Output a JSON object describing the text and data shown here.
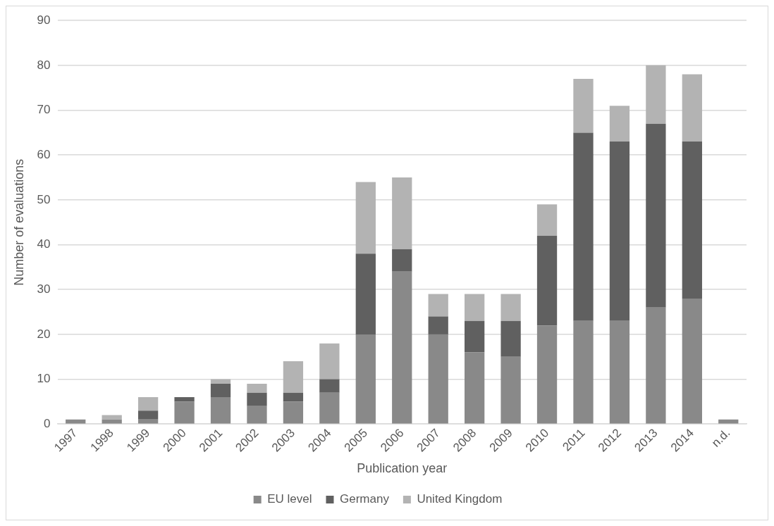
{
  "chart_data": {
    "type": "bar",
    "stacked": true,
    "xlabel": "Publication year",
    "ylabel": "Number of evaluations",
    "categories": [
      "1997",
      "1998",
      "1999",
      "2000",
      "2001",
      "2002",
      "2003",
      "2004",
      "2005",
      "2006",
      "2007",
      "2008",
      "2009",
      "2010",
      "2011",
      "2012",
      "2013",
      "2014",
      "n.d."
    ],
    "series": [
      {
        "name": "EU level",
        "color": "#898989",
        "values": [
          1,
          1,
          1,
          5,
          6,
          4,
          5,
          7,
          20,
          34,
          20,
          16,
          15,
          22,
          23,
          23,
          26,
          28,
          1
        ]
      },
      {
        "name": "Germany",
        "color": "#606060",
        "values": [
          0,
          0,
          2,
          1,
          3,
          3,
          2,
          3,
          18,
          5,
          4,
          7,
          8,
          20,
          42,
          40,
          41,
          35,
          0
        ]
      },
      {
        "name": "United Kingdom",
        "color": "#b3b3b3",
        "values": [
          0,
          1,
          3,
          0,
          1,
          2,
          7,
          8,
          16,
          16,
          5,
          6,
          6,
          7,
          12,
          8,
          13,
          15,
          0
        ]
      }
    ],
    "ylim": [
      0,
      90
    ],
    "yticks": [
      0,
      10,
      20,
      30,
      40,
      50,
      60,
      70,
      80,
      90
    ],
    "grid": "y",
    "legend": "bottom"
  }
}
